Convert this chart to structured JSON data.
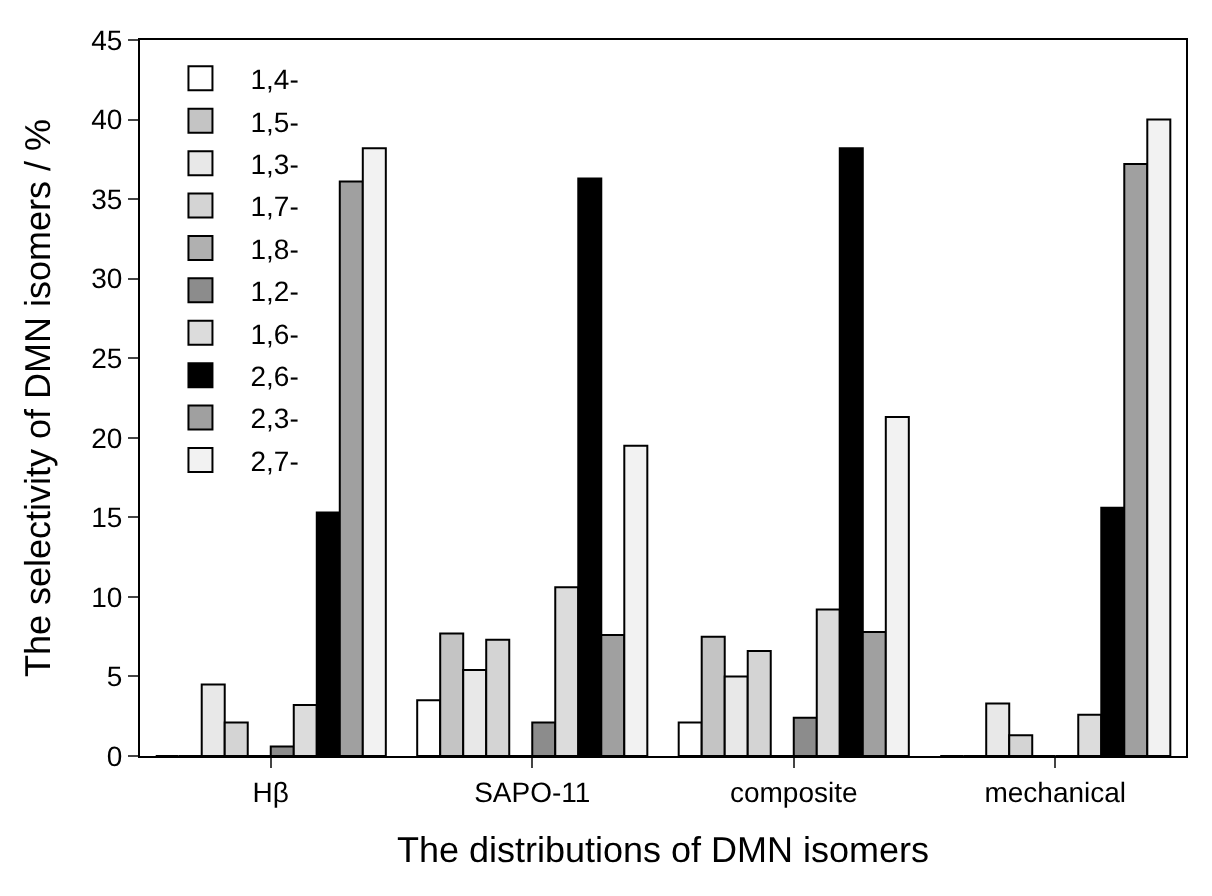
{
  "chart_data": {
    "type": "bar",
    "xlabel": "The distributions of DMN isomers",
    "ylabel": "The selectivity of DMN isomers / %",
    "categories": [
      "Hβ",
      "SAPO-11",
      "composite",
      "mechanical"
    ],
    "ylim": [
      0,
      45
    ],
    "yticks": [
      0,
      5,
      10,
      15,
      20,
      25,
      30,
      35,
      40,
      45
    ],
    "legend": "top left",
    "series": [
      {
        "name": "1,4-",
        "color": "#ffffff",
        "values": [
          0,
          3.5,
          2.1,
          0
        ]
      },
      {
        "name": "1,5-",
        "color": "#c4c4c4",
        "values": [
          0,
          7.7,
          7.5,
          0
        ]
      },
      {
        "name": "1,3-",
        "color": "#e8e8e8",
        "values": [
          4.5,
          5.4,
          5.0,
          3.3
        ]
      },
      {
        "name": "1,7-",
        "color": "#d4d4d4",
        "values": [
          2.1,
          7.3,
          6.6,
          1.3
        ]
      },
      {
        "name": "1,8-",
        "color": "#b0b0b0",
        "values": [
          0,
          0,
          0,
          0
        ]
      },
      {
        "name": "1,2-",
        "color": "#8c8c8c",
        "values": [
          0.6,
          2.1,
          2.4,
          0
        ]
      },
      {
        "name": "1,6-",
        "color": "#dcdcdc",
        "values": [
          3.2,
          10.6,
          9.2,
          2.6
        ]
      },
      {
        "name": "2,6-",
        "color": "#000000",
        "values": [
          15.3,
          36.3,
          38.2,
          15.6
        ]
      },
      {
        "name": "2,3-",
        "color": "#a0a0a0",
        "values": [
          36.1,
          7.6,
          7.8,
          37.2
        ]
      },
      {
        "name": "2,7-",
        "color": "#f2f2f2",
        "values": [
          38.2,
          19.5,
          21.3,
          40.0
        ]
      }
    ]
  }
}
